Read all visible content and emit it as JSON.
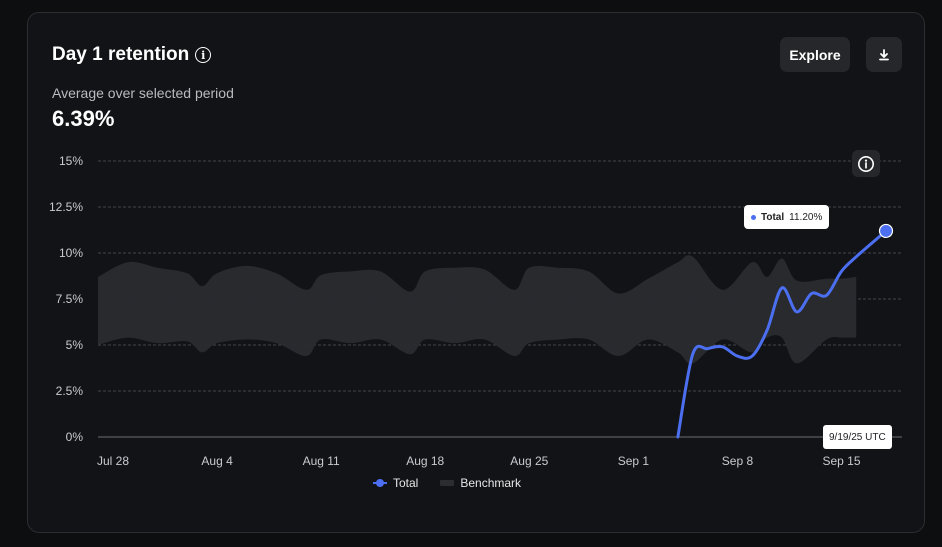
{
  "header": {
    "title": "Day 1 retention",
    "subtitle": "Average over selected period",
    "value": "6.39%",
    "explore_label": "Explore"
  },
  "tooltip": {
    "series": "Total",
    "value": "11.20%",
    "date": "9/19/25 UTC"
  },
  "legend": {
    "total": "Total",
    "benchmark": "Benchmark"
  },
  "colors": {
    "total": "#4b6ff0",
    "benchmark": "#2a2b2f"
  },
  "chart_data": {
    "type": "line",
    "title": "Day 1 retention",
    "y_unit": "%",
    "ylim": [
      0,
      15
    ],
    "y_ticks": [
      "0%",
      "2.5%",
      "5%",
      "7.5%",
      "10%",
      "12.5%",
      "15%"
    ],
    "x_ticks": [
      "Jul 28",
      "Aug 4",
      "Aug 11",
      "Aug 18",
      "Aug 25",
      "Sep 1",
      "Sep 8",
      "Sep 15"
    ],
    "x_range": [
      "2025-07-28",
      "2025-09-19"
    ],
    "grid": true,
    "legend_position": "bottom",
    "series": [
      {
        "name": "Total",
        "x": [
          "2025-09-05",
          "2025-09-06",
          "2025-09-07",
          "2025-09-08",
          "2025-09-09",
          "2025-09-10",
          "2025-09-11",
          "2025-09-12",
          "2025-09-13",
          "2025-09-14",
          "2025-09-15",
          "2025-09-16",
          "2025-09-17",
          "2025-09-18",
          "2025-09-19"
        ],
        "values": [
          0,
          4.5,
          4.8,
          4.9,
          4.4,
          4.4,
          5.8,
          8.1,
          6.8,
          7.8,
          7.7,
          9.0,
          9.8,
          10.5,
          11.2
        ]
      },
      {
        "name": "Benchmark",
        "type": "band",
        "x": [
          "2025-07-28",
          "2025-07-30",
          "2025-08-01",
          "2025-08-03",
          "2025-08-04",
          "2025-08-05",
          "2025-08-07",
          "2025-08-09",
          "2025-08-11",
          "2025-08-12",
          "2025-08-14",
          "2025-08-16",
          "2025-08-18",
          "2025-08-19",
          "2025-08-21",
          "2025-08-23",
          "2025-08-25",
          "2025-08-26",
          "2025-08-28",
          "2025-08-30",
          "2025-09-01",
          "2025-09-03",
          "2025-09-05",
          "2025-09-06",
          "2025-09-08",
          "2025-09-10",
          "2025-09-11",
          "2025-09-12",
          "2025-09-13",
          "2025-09-15",
          "2025-09-16",
          "2025-09-17"
        ],
        "upper": [
          8.7,
          9.5,
          9.2,
          8.9,
          8.2,
          8.9,
          9.3,
          8.9,
          8.0,
          8.8,
          9.0,
          9.0,
          7.9,
          9.0,
          9.2,
          9.1,
          8.0,
          9.2,
          9.2,
          9.0,
          7.8,
          8.6,
          9.5,
          9.8,
          8.0,
          9.5,
          8.7,
          9.7,
          8.5,
          8.6,
          8.6,
          8.7
        ],
        "lower": [
          5.0,
          5.4,
          5.1,
          5.2,
          4.6,
          5.1,
          5.3,
          5.1,
          4.4,
          5.3,
          5.1,
          5.3,
          4.5,
          5.3,
          5.1,
          5.3,
          4.4,
          5.1,
          5.3,
          5.3,
          4.4,
          5.3,
          4.6,
          4.0,
          5.3,
          4.6,
          5.4,
          5.4,
          4.0,
          5.3,
          5.4,
          5.4
        ]
      }
    ]
  }
}
